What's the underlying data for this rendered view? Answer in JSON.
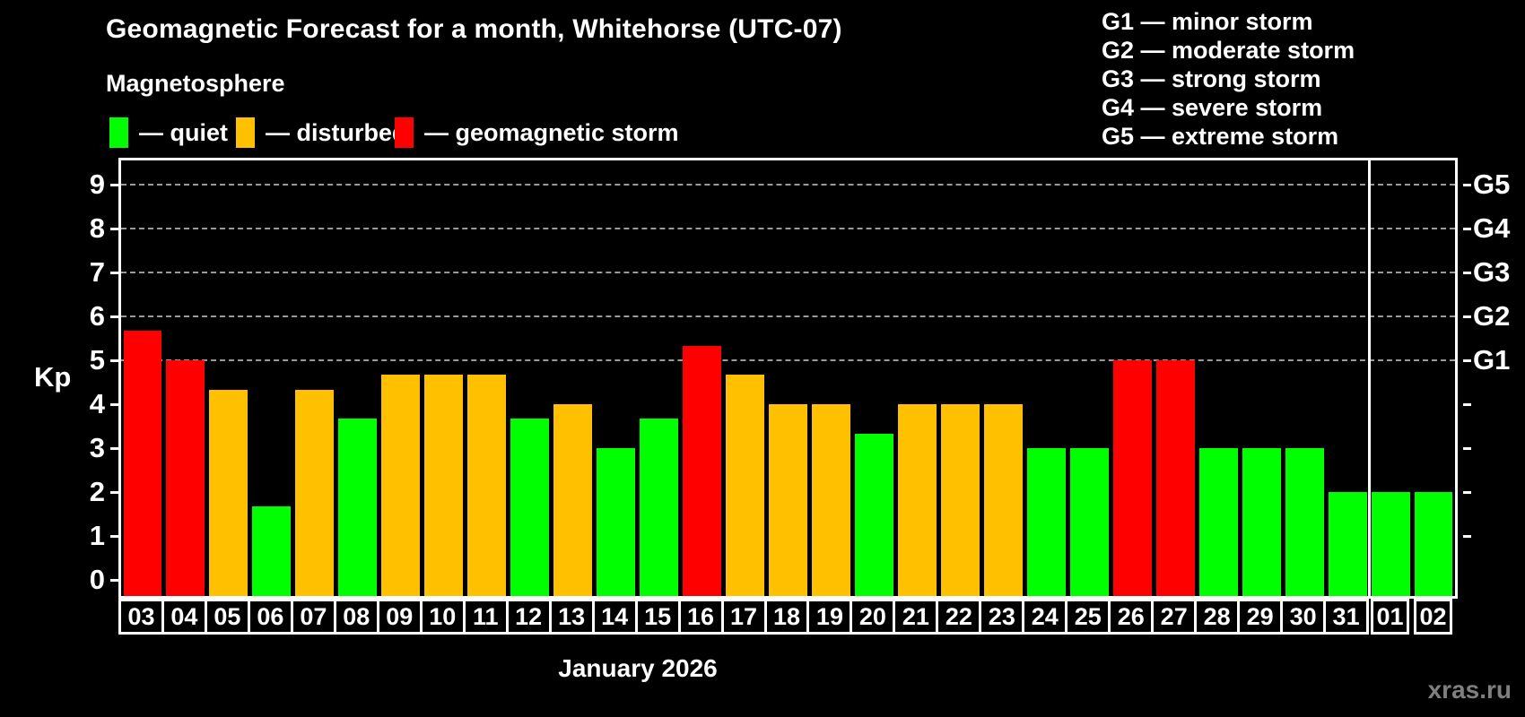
{
  "header": {
    "title": "Geomagnetic Forecast for a month, Whitehorse (UTC-07)",
    "subtitle": "Magnetosphere"
  },
  "legend": {
    "items": [
      {
        "label": "— quiet",
        "color": "#00ff00",
        "key": "quiet"
      },
      {
        "label": "— disturbed",
        "color": "#ffc000",
        "key": "disturbed"
      },
      {
        "label": "— geomagnetic storm",
        "color": "#ff0000",
        "key": "storm"
      }
    ]
  },
  "g_legend": {
    "items": [
      "G1 — minor storm",
      "G2 — moderate storm",
      "G3 — strong storm",
      "G4 — severe storm",
      "G5 — extreme storm"
    ]
  },
  "axes": {
    "y_left_label": "Kp",
    "x_label": "January 2026"
  },
  "watermark": "xras.ru",
  "chart_data": {
    "type": "bar",
    "title": "Geomagnetic Forecast for a month, Whitehorse (UTC-07)",
    "xlabel": "January 2026",
    "ylabel": "Kp",
    "ylim": [
      0,
      9.55
    ],
    "y_ticks": [
      0,
      1,
      2,
      3,
      4,
      5,
      6,
      7,
      8,
      9
    ],
    "gridlines_kp": [
      5,
      6,
      7,
      8,
      9
    ],
    "right_axis_labels": [
      {
        "kp": 5,
        "label": "G1"
      },
      {
        "kp": 6,
        "label": "G2"
      },
      {
        "kp": 7,
        "label": "G3"
      },
      {
        "kp": 8,
        "label": "G4"
      },
      {
        "kp": 9,
        "label": "G5"
      }
    ],
    "colors": {
      "quiet": "#00ff00",
      "disturbed": "#ffc000",
      "storm": "#ff0000"
    },
    "grid_color": "#9a9a9a",
    "month_separator_after_index": 28,
    "days": [
      {
        "date": "03",
        "kp": 5.67,
        "status": "storm"
      },
      {
        "date": "04",
        "kp": 5.0,
        "status": "storm"
      },
      {
        "date": "05",
        "kp": 4.33,
        "status": "disturbed"
      },
      {
        "date": "06",
        "kp": 1.67,
        "status": "quiet"
      },
      {
        "date": "07",
        "kp": 4.33,
        "status": "disturbed"
      },
      {
        "date": "08",
        "kp": 3.67,
        "status": "quiet"
      },
      {
        "date": "09",
        "kp": 4.67,
        "status": "disturbed"
      },
      {
        "date": "10",
        "kp": 4.67,
        "status": "disturbed"
      },
      {
        "date": "11",
        "kp": 4.67,
        "status": "disturbed"
      },
      {
        "date": "12",
        "kp": 3.67,
        "status": "quiet"
      },
      {
        "date": "13",
        "kp": 4.0,
        "status": "disturbed"
      },
      {
        "date": "14",
        "kp": 3.0,
        "status": "quiet"
      },
      {
        "date": "15",
        "kp": 3.67,
        "status": "quiet"
      },
      {
        "date": "16",
        "kp": 5.33,
        "status": "storm"
      },
      {
        "date": "17",
        "kp": 4.67,
        "status": "disturbed"
      },
      {
        "date": "18",
        "kp": 4.0,
        "status": "disturbed"
      },
      {
        "date": "19",
        "kp": 4.0,
        "status": "disturbed"
      },
      {
        "date": "20",
        "kp": 3.33,
        "status": "quiet"
      },
      {
        "date": "21",
        "kp": 4.0,
        "status": "disturbed"
      },
      {
        "date": "22",
        "kp": 4.0,
        "status": "disturbed"
      },
      {
        "date": "23",
        "kp": 4.0,
        "status": "disturbed"
      },
      {
        "date": "24",
        "kp": 3.0,
        "status": "quiet"
      },
      {
        "date": "25",
        "kp": 3.0,
        "status": "quiet"
      },
      {
        "date": "26",
        "kp": 5.0,
        "status": "storm"
      },
      {
        "date": "27",
        "kp": 5.0,
        "status": "storm"
      },
      {
        "date": "28",
        "kp": 3.0,
        "status": "quiet"
      },
      {
        "date": "29",
        "kp": 3.0,
        "status": "quiet"
      },
      {
        "date": "30",
        "kp": 3.0,
        "status": "quiet"
      },
      {
        "date": "31",
        "kp": 2.0,
        "status": "quiet"
      },
      {
        "date": "01",
        "kp": 2.0,
        "status": "quiet"
      },
      {
        "date": "02",
        "kp": 2.0,
        "status": "quiet"
      }
    ]
  }
}
